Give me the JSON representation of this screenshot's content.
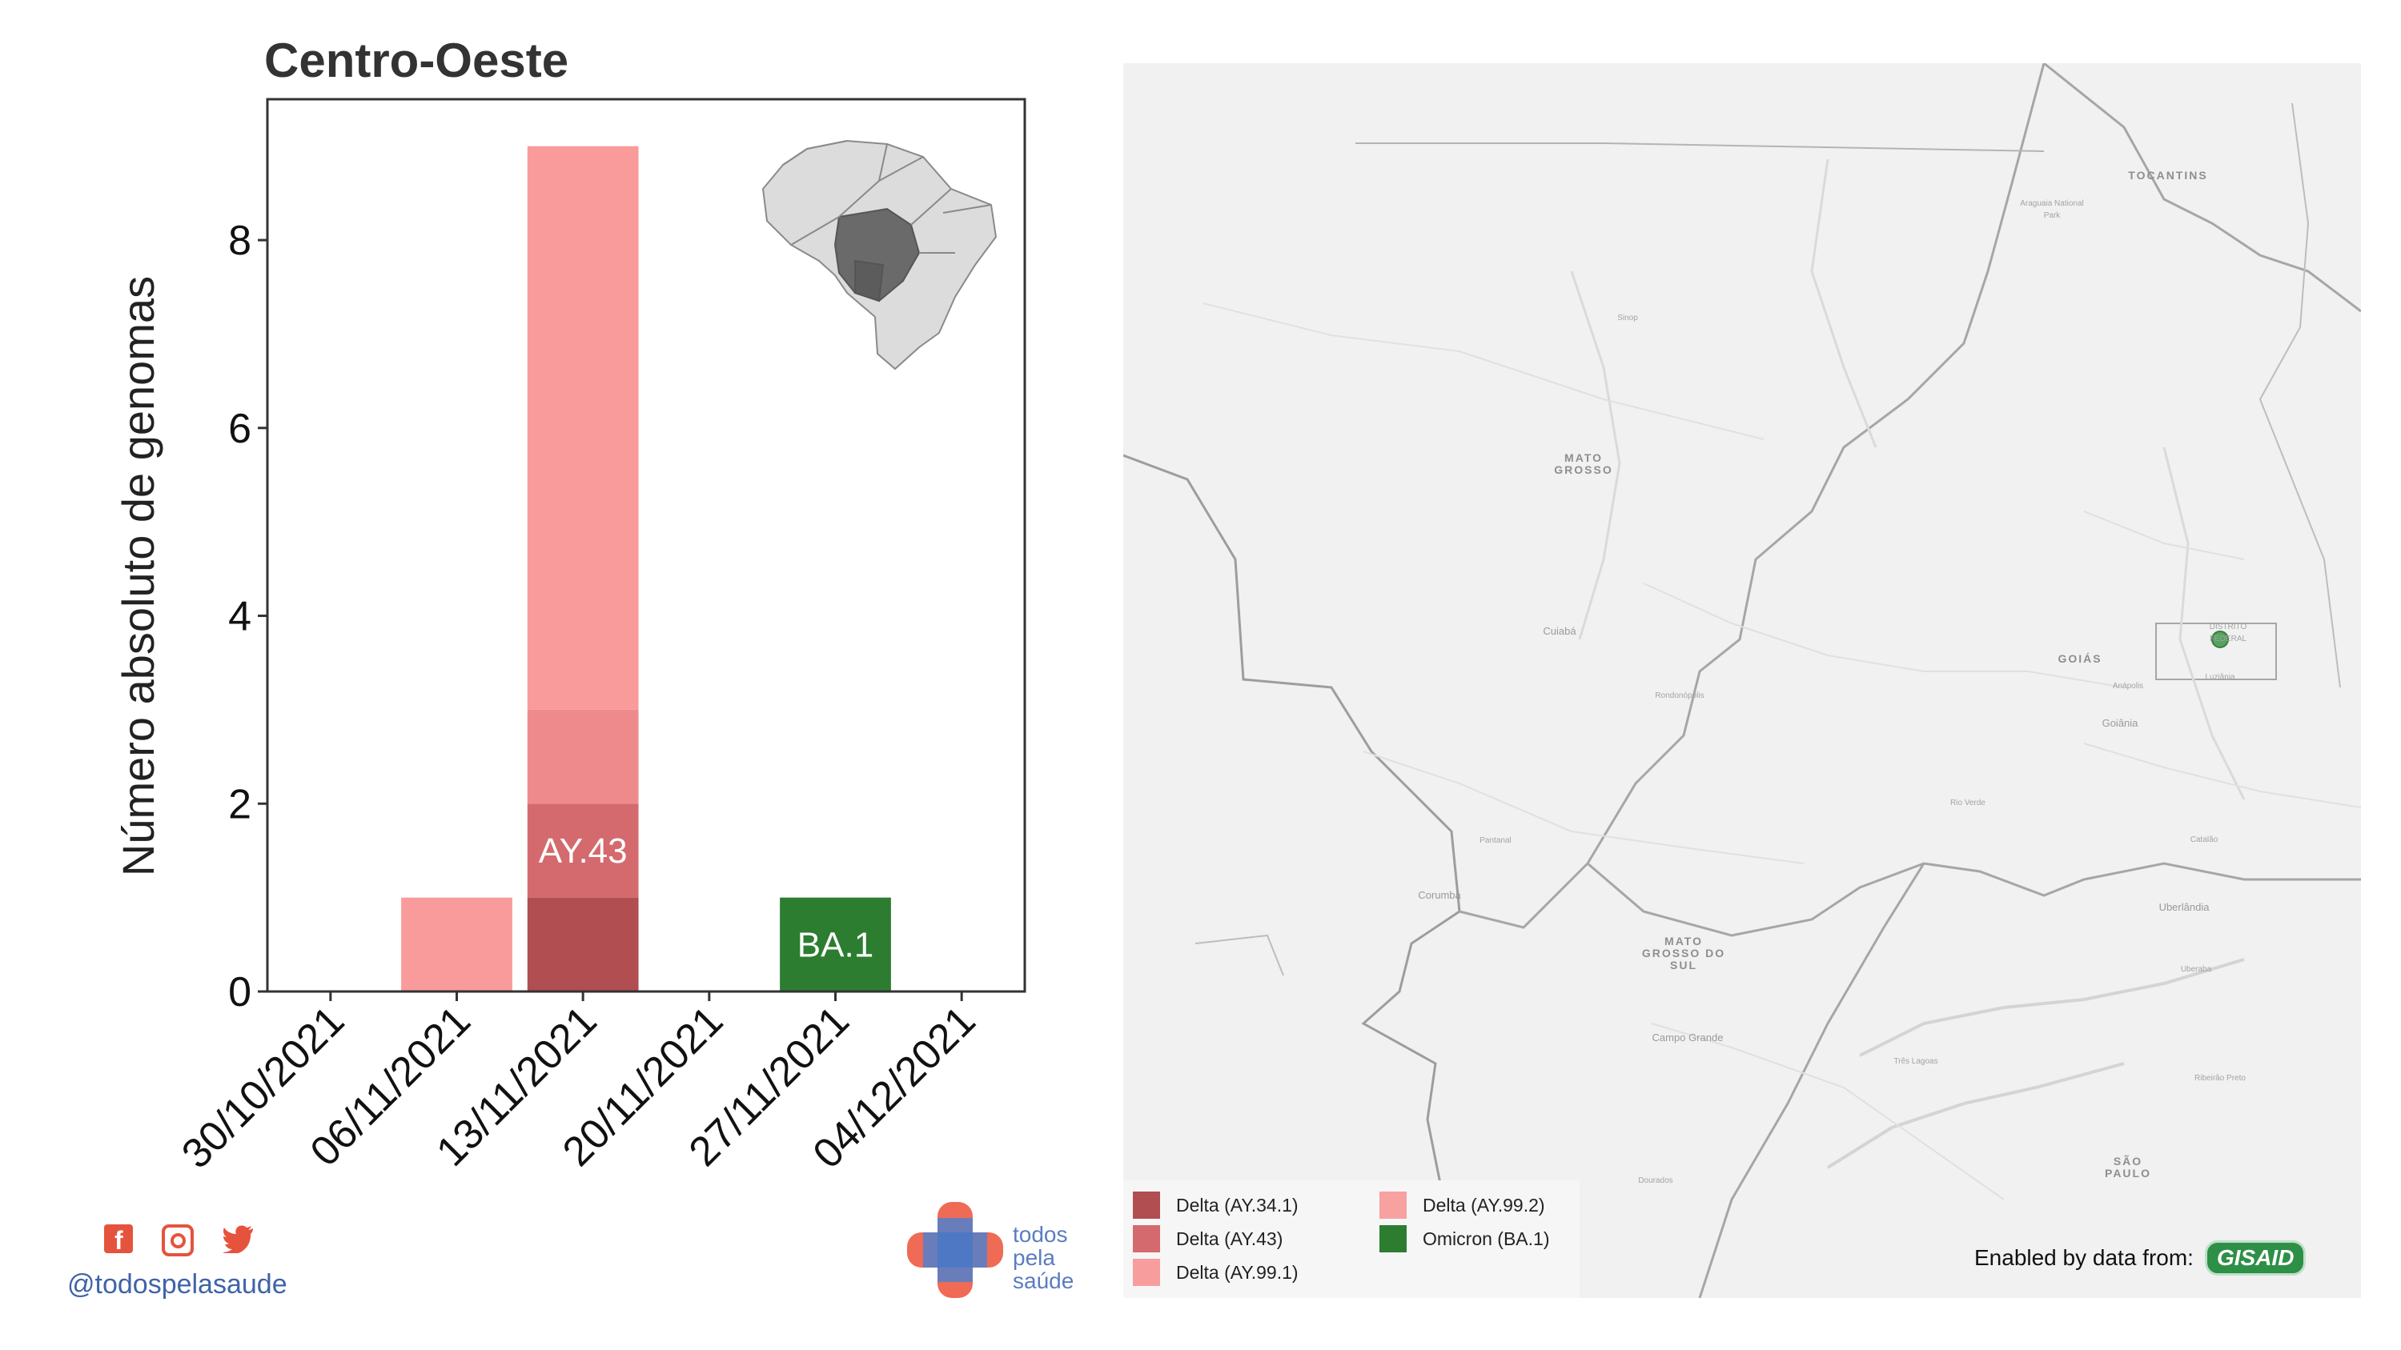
{
  "chart_data": {
    "type": "bar",
    "stacked": true,
    "title": "Centro-Oeste",
    "ylabel": "Número absoluto de genomas",
    "xlabel": "",
    "ylim": [
      0,
      9.5
    ],
    "yticks": [
      0,
      2,
      4,
      6,
      8
    ],
    "categories": [
      "30/10/2021",
      "06/11/2021",
      "13/11/2021",
      "20/11/2021",
      "27/11/2021",
      "04/12/2021"
    ],
    "series": [
      {
        "name": "Delta (AY.34.1)",
        "color": "#b14e52",
        "values": [
          0,
          0,
          1,
          0,
          0,
          0
        ]
      },
      {
        "name": "Delta (AY.43)",
        "color": "#d46a6e",
        "values": [
          0,
          0,
          1,
          0,
          0,
          0
        ]
      },
      {
        "name": "Delta (AY.99.1)",
        "color": "#ef8a8c",
        "values": [
          0,
          0,
          1,
          0,
          0,
          0
        ]
      },
      {
        "name": "Delta (AY.99.2)",
        "color": "#f99b9b",
        "values": [
          0,
          1,
          6,
          0,
          0,
          0
        ]
      },
      {
        "name": "Omicron (BA.1)",
        "color": "#2c7d30",
        "values": [
          0,
          0,
          0,
          0,
          1,
          0
        ]
      }
    ],
    "annotations": [
      {
        "category": "13/11/2021",
        "y": 1.5,
        "text": "AY.43"
      },
      {
        "category": "27/11/2021",
        "y": 0.5,
        "text": "BA.1"
      }
    ],
    "grid": false,
    "legend": "bottom-left of map"
  },
  "map": {
    "labels": {
      "mato_grosso": "MATO GROSSO",
      "mato_grosso_do_sul": "MATO GROSSO DO SUL",
      "goias": "GOIÁS",
      "tocantins": "TOCANTINS",
      "distrito_federal": "DISTRITO FEDERAL",
      "cuiaba": "Cuiabá",
      "campo_grande": "Campo Grande",
      "goiania": "Goiânia",
      "anapolis": "Anápolis",
      "luziania": "Luziânia",
      "rondonopolis": "Rondonópolis",
      "corumba": "Corumbá",
      "rio_verde": "Rio Verde",
      "uberlandia": "Uberlândia",
      "sinop": "Sinop",
      "dourados": "Dourados",
      "pantanal": "Pantanal",
      "catalao": "Catalão",
      "tres_lagoas": "Três Lagoas",
      "ribeirao_preto": "Ribeirão Preto",
      "sao_paulo": "SÃO PAULO",
      "uberaba": "Uberaba",
      "araguaia": "Araguaia National Park"
    },
    "legend": [
      {
        "label": "Delta (AY.34.1)",
        "color": "#b14e52"
      },
      {
        "label": "Delta (AY.43)",
        "color": "#d46a6e"
      },
      {
        "label": "Delta (AY.99.1)",
        "color": "#f79d9e"
      },
      {
        "label": "Delta (AY.99.2)",
        "color": "#f7a1a1"
      },
      {
        "label": "Omicron (BA.1)",
        "color": "#2c7d30"
      }
    ],
    "gisaid_text": "Enabled by data from:",
    "gisaid_logo": "GISAID"
  },
  "footer": {
    "handle": "@todospelasaude",
    "brand_line1": "todos",
    "brand_line2": "pela",
    "brand_line3": "saúde"
  }
}
